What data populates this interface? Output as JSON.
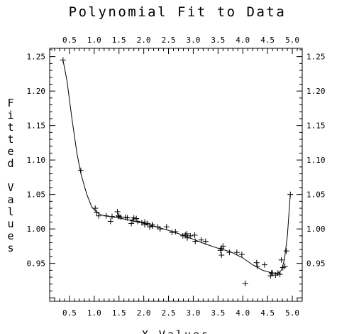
{
  "chart_data": {
    "type": "scatter",
    "title": "Polynomial Fit to Data",
    "xlabel": "X  Values",
    "ylabel": "Fitted Values",
    "xlim": [
      0.1,
      5.2
    ],
    "ylim": [
      0.895,
      1.262
    ],
    "grid": false,
    "x_ticks": [
      0.5,
      1.0,
      1.5,
      2.0,
      2.5,
      3.0,
      3.5,
      4.0,
      4.5,
      5.0
    ],
    "x_tick_labels": [
      "0.5",
      "1.0",
      "1.5",
      "2.0",
      "2.5",
      "3.0",
      "3.5",
      "4.0",
      "4.5",
      "5.0"
    ],
    "y_ticks": [
      0.95,
      1.0,
      1.05,
      1.1,
      1.15,
      1.2,
      1.25
    ],
    "y_tick_labels": [
      "0.95",
      "1.00",
      "1.05",
      "1.10",
      "1.15",
      "1.20",
      "1.25"
    ],
    "series": [
      {
        "marker": "+",
        "x": [
          0.37,
          0.73,
          1.02,
          1.05,
          1.09,
          1.24,
          1.33,
          1.36,
          1.47,
          1.49,
          1.5,
          1.54,
          1.63,
          1.67,
          1.75,
          1.78,
          1.8,
          1.85,
          1.88,
          1.96,
          2.02,
          2.02,
          2.08,
          2.12,
          2.17,
          2.18,
          2.28,
          2.33,
          2.46,
          2.57,
          2.64,
          2.79,
          2.84,
          2.87,
          2.88,
          2.94,
          3.03,
          3.04,
          3.16,
          3.25,
          3.55,
          3.57,
          3.57,
          3.6,
          3.73,
          3.88,
          3.98,
          4.05,
          4.28,
          4.29,
          4.44,
          4.56,
          4.58,
          4.6,
          4.66,
          4.71,
          4.75,
          4.78,
          4.81,
          4.85,
          4.88,
          4.96
        ],
        "y": [
          1.245,
          1.085,
          1.03,
          1.024,
          1.019,
          1.019,
          1.011,
          1.018,
          1.025,
          1.019,
          1.018,
          1.017,
          1.017,
          1.016,
          1.008,
          1.013,
          1.016,
          1.015,
          1.011,
          1.009,
          1.01,
          1.006,
          1.008,
          1.003,
          1.006,
          1.004,
          1.003,
          1.0,
          1.003,
          0.995,
          0.996,
          0.99,
          0.991,
          0.993,
          0.987,
          0.99,
          0.991,
          0.982,
          0.984,
          0.982,
          0.969,
          0.972,
          0.962,
          0.975,
          0.966,
          0.966,
          0.963,
          0.921,
          0.951,
          0.946,
          0.948,
          0.932,
          0.936,
          0.936,
          0.933,
          0.936,
          0.934,
          0.955,
          0.944,
          0.946,
          0.968,
          1.05
        ]
      }
    ],
    "fit_curve": {
      "x": [
        0.37,
        0.45,
        0.55,
        0.65,
        0.73,
        0.85,
        0.95,
        1.05,
        1.15,
        1.3,
        1.5,
        1.75,
        2.0,
        2.25,
        2.5,
        2.75,
        3.0,
        3.25,
        3.5,
        3.75,
        4.0,
        4.2,
        4.4,
        4.55,
        4.7,
        4.78,
        4.84,
        4.9,
        4.96
      ],
      "y": [
        1.245,
        1.215,
        1.16,
        1.11,
        1.08,
        1.05,
        1.032,
        1.024,
        1.02,
        1.018,
        1.016,
        1.012,
        1.008,
        1.003,
        0.998,
        0.992,
        0.985,
        0.978,
        0.972,
        0.967,
        0.958,
        0.948,
        0.94,
        0.937,
        0.935,
        0.94,
        0.955,
        0.99,
        1.05
      ]
    }
  }
}
